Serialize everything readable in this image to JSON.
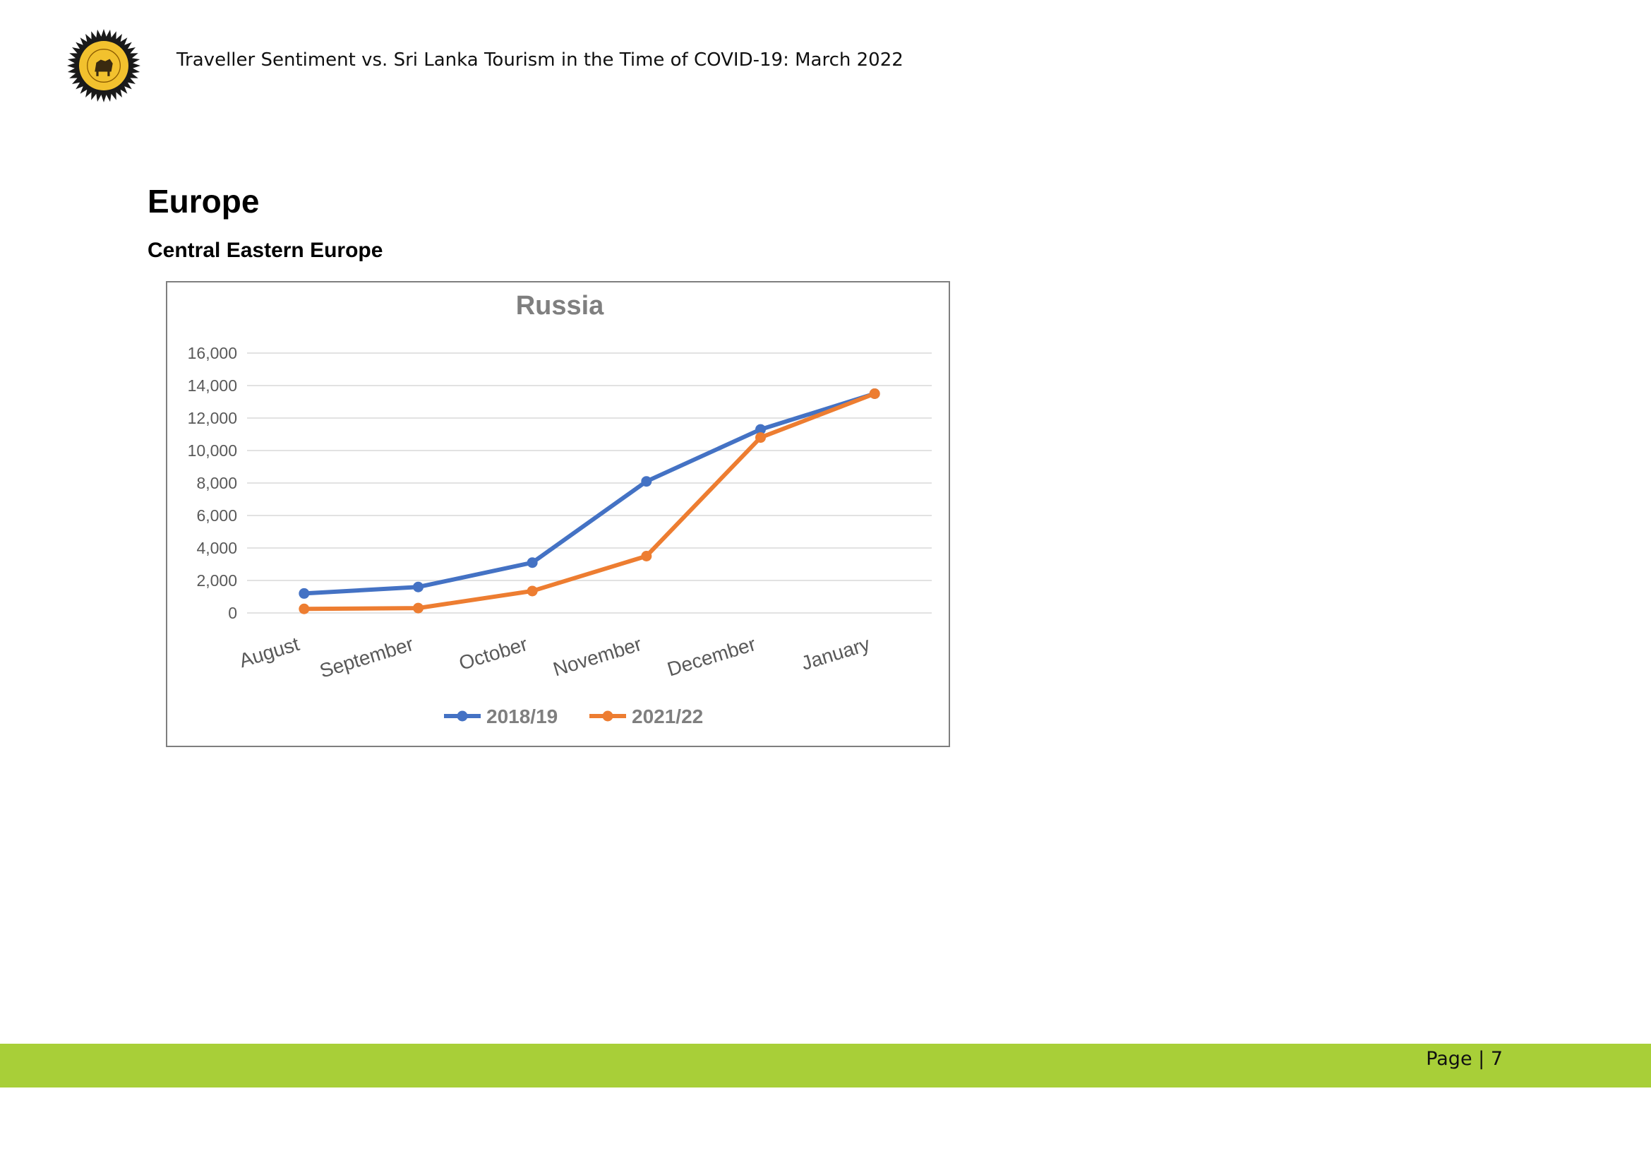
{
  "header": {
    "title": "Traveller Sentiment vs. Sri Lanka Tourism in the Time of COVID-19: March 2022",
    "logo_icon": "sri-lanka-tourism-emblem-icon"
  },
  "section": {
    "title": "Europe",
    "subtitle": "Central Eastern Europe"
  },
  "footer": {
    "page_label": "Page | 7",
    "band_color": "#a8cf38"
  },
  "chart_data": {
    "type": "line",
    "title": "Russia",
    "categories": [
      "August",
      "September",
      "October",
      "November",
      "December",
      "January"
    ],
    "series": [
      {
        "name": "2018/19",
        "color": "#4472c4",
        "values": [
          1200,
          1600,
          3100,
          8100,
          11300,
          13500
        ]
      },
      {
        "name": "2021/22",
        "color": "#ed7d31",
        "values": [
          250,
          300,
          1350,
          3500,
          10800,
          13500
        ]
      }
    ],
    "ylim": [
      0,
      16000
    ],
    "yticks": [
      "0",
      "2,000",
      "4,000",
      "6,000",
      "8,000",
      "10,000",
      "12,000",
      "14,000",
      "16,000"
    ],
    "ytick_values": [
      0,
      2000,
      4000,
      6000,
      8000,
      10000,
      12000,
      14000,
      16000
    ],
    "grid": true,
    "legend": "bottom"
  }
}
